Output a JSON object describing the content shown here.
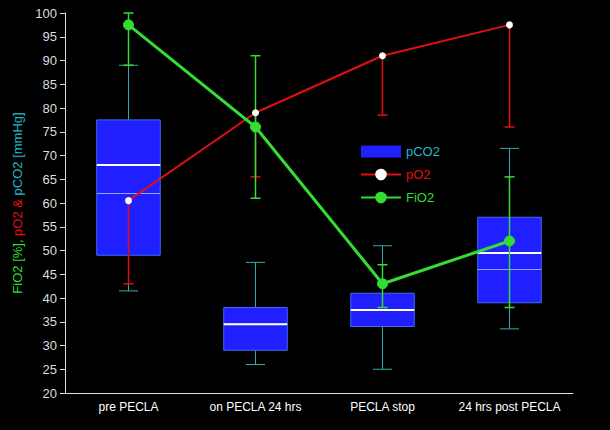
{
  "chart_data": {
    "type": "line",
    "ylabel": "FiO2 [%], pO2 & pCO2 [mmHg]",
    "categories": [
      "pre PECLA",
      "on PECLA 24 hrs",
      "PECLA stop",
      "24 hrs post PECLA"
    ],
    "series": [
      {
        "name": "pCO2",
        "type": "boxplot",
        "color": "#1f1fff",
        "values": [
          [
            41.5,
            49,
            68,
            77.5,
            89
          ],
          [
            26,
            29,
            34.5,
            38,
            47.5
          ],
          [
            25,
            34,
            37.5,
            41,
            51
          ],
          [
            33.5,
            39,
            49.5,
            57,
            71.5
          ]
        ],
        "means": [
          62,
          34.5,
          37.5,
          46
        ]
      },
      {
        "name": "pO2",
        "type": "line",
        "color": "#e01010",
        "marker": "emptyCircle",
        "values": [
          60.5,
          79,
          91,
          97.5
        ],
        "error_low": [
          43,
          65.5,
          78.5,
          76
        ]
      },
      {
        "name": "FiO2",
        "type": "line",
        "color": "#33dd33",
        "marker": "circle",
        "values": [
          97.5,
          76,
          43,
          52
        ],
        "error_low": [
          89,
          61,
          38,
          38
        ],
        "error_high": [
          100,
          91,
          47,
          65.5
        ]
      }
    ],
    "ylim": [
      20,
      100
    ],
    "yticks": [
      20,
      25,
      30,
      35,
      40,
      45,
      50,
      55,
      60,
      65,
      70,
      75,
      80,
      85,
      90,
      95,
      100
    ],
    "grid": false,
    "legend": "center"
  }
}
